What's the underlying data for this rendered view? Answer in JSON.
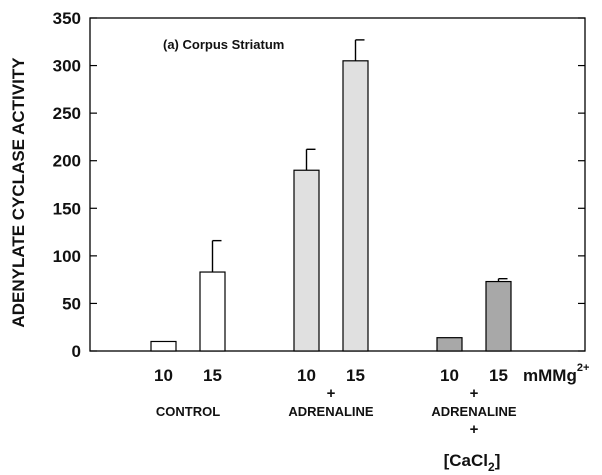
{
  "chart_data": {
    "type": "bar",
    "title": "",
    "annotation": "(a) Corpus Striatum",
    "ylabel": "ADENYLATE CYCLASE ACTIVITY",
    "ylim": [
      0,
      350
    ],
    "yticks": [
      0,
      50,
      100,
      150,
      200,
      250,
      300,
      350
    ],
    "ytick_labels": [
      "0",
      "50",
      "100",
      "150",
      "200",
      "250",
      "300",
      "350"
    ],
    "x_unit": "mMMg",
    "x_unit_sup": "2+",
    "groups": [
      {
        "name": "CONTROL",
        "label_lines": [
          "CONTROL"
        ],
        "color": "#ffffff",
        "categories": [
          "10",
          "15"
        ],
        "values": [
          10,
          83
        ],
        "errors": [
          0,
          33
        ]
      },
      {
        "name": "+ ADRENALINE",
        "label_lines": [
          "+",
          "ADRENALINE"
        ],
        "color": "#e0e0e0",
        "categories": [
          "10",
          "15"
        ],
        "values": [
          190,
          305
        ],
        "errors": [
          22,
          22
        ]
      },
      {
        "name": "+ ADRENALINE + [CaCl2]",
        "label_lines": [
          "+",
          "ADRENALINE",
          "+"
        ],
        "label_last": "[CaCl",
        "label_last_sub": "2",
        "label_last_end": "]",
        "color": "#a8a8a8",
        "categories": [
          "10",
          "15"
        ],
        "values": [
          14,
          73
        ],
        "errors": [
          0,
          3
        ]
      }
    ],
    "grid": false,
    "legend": "none"
  }
}
